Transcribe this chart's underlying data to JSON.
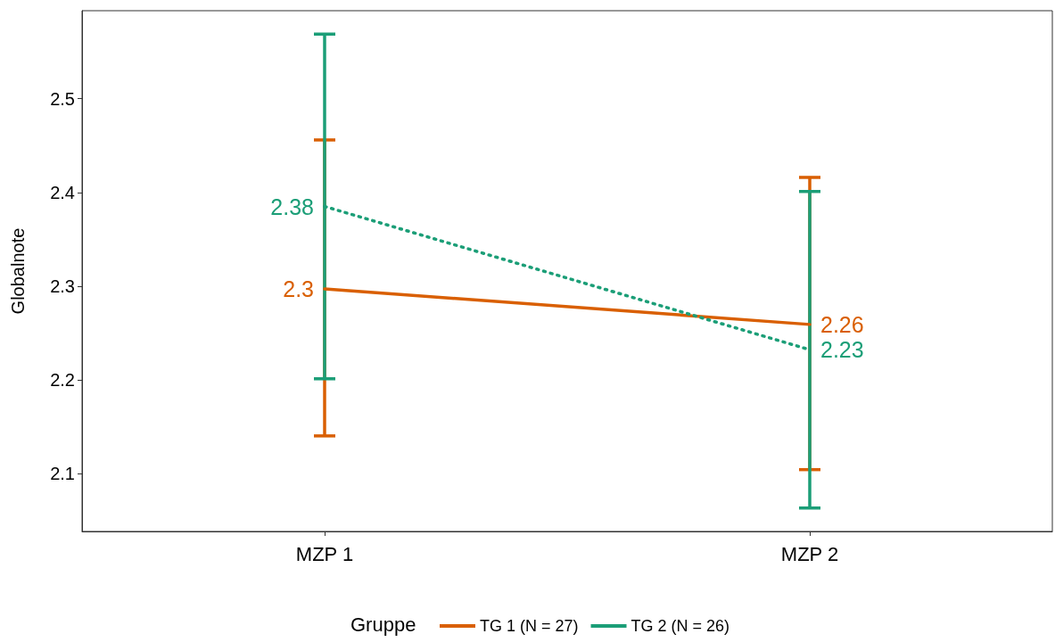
{
  "chart_data": {
    "type": "line",
    "ylabel": "Globalnote",
    "legend_title": "Gruppe",
    "categories": [
      "MZP 1",
      "MZP 2"
    ],
    "series": [
      {
        "name": "TG 1 (N = 27)",
        "color": "#d95f02",
        "values": [
          2.297,
          2.259
        ],
        "errors": [
          [
            2.14,
            2.456
          ],
          [
            2.104,
            2.416
          ]
        ],
        "value_labels": [
          "2.3",
          "2.26"
        ],
        "line_style": "solid"
      },
      {
        "name": "TG 2 (N = 26)",
        "color": "#1b9e77",
        "values": [
          2.385,
          2.232
        ],
        "errors": [
          [
            2.201,
            2.569
          ],
          [
            2.063,
            2.401
          ]
        ],
        "value_labels": [
          "2.38",
          "2.23"
        ],
        "line_style": "dotted"
      }
    ],
    "ylim": [
      2.038,
      2.594
    ],
    "yticks": [
      2.1,
      2.2,
      2.3,
      2.4,
      2.5
    ],
    "grid": false,
    "legend": "bottom",
    "marker": "none"
  }
}
